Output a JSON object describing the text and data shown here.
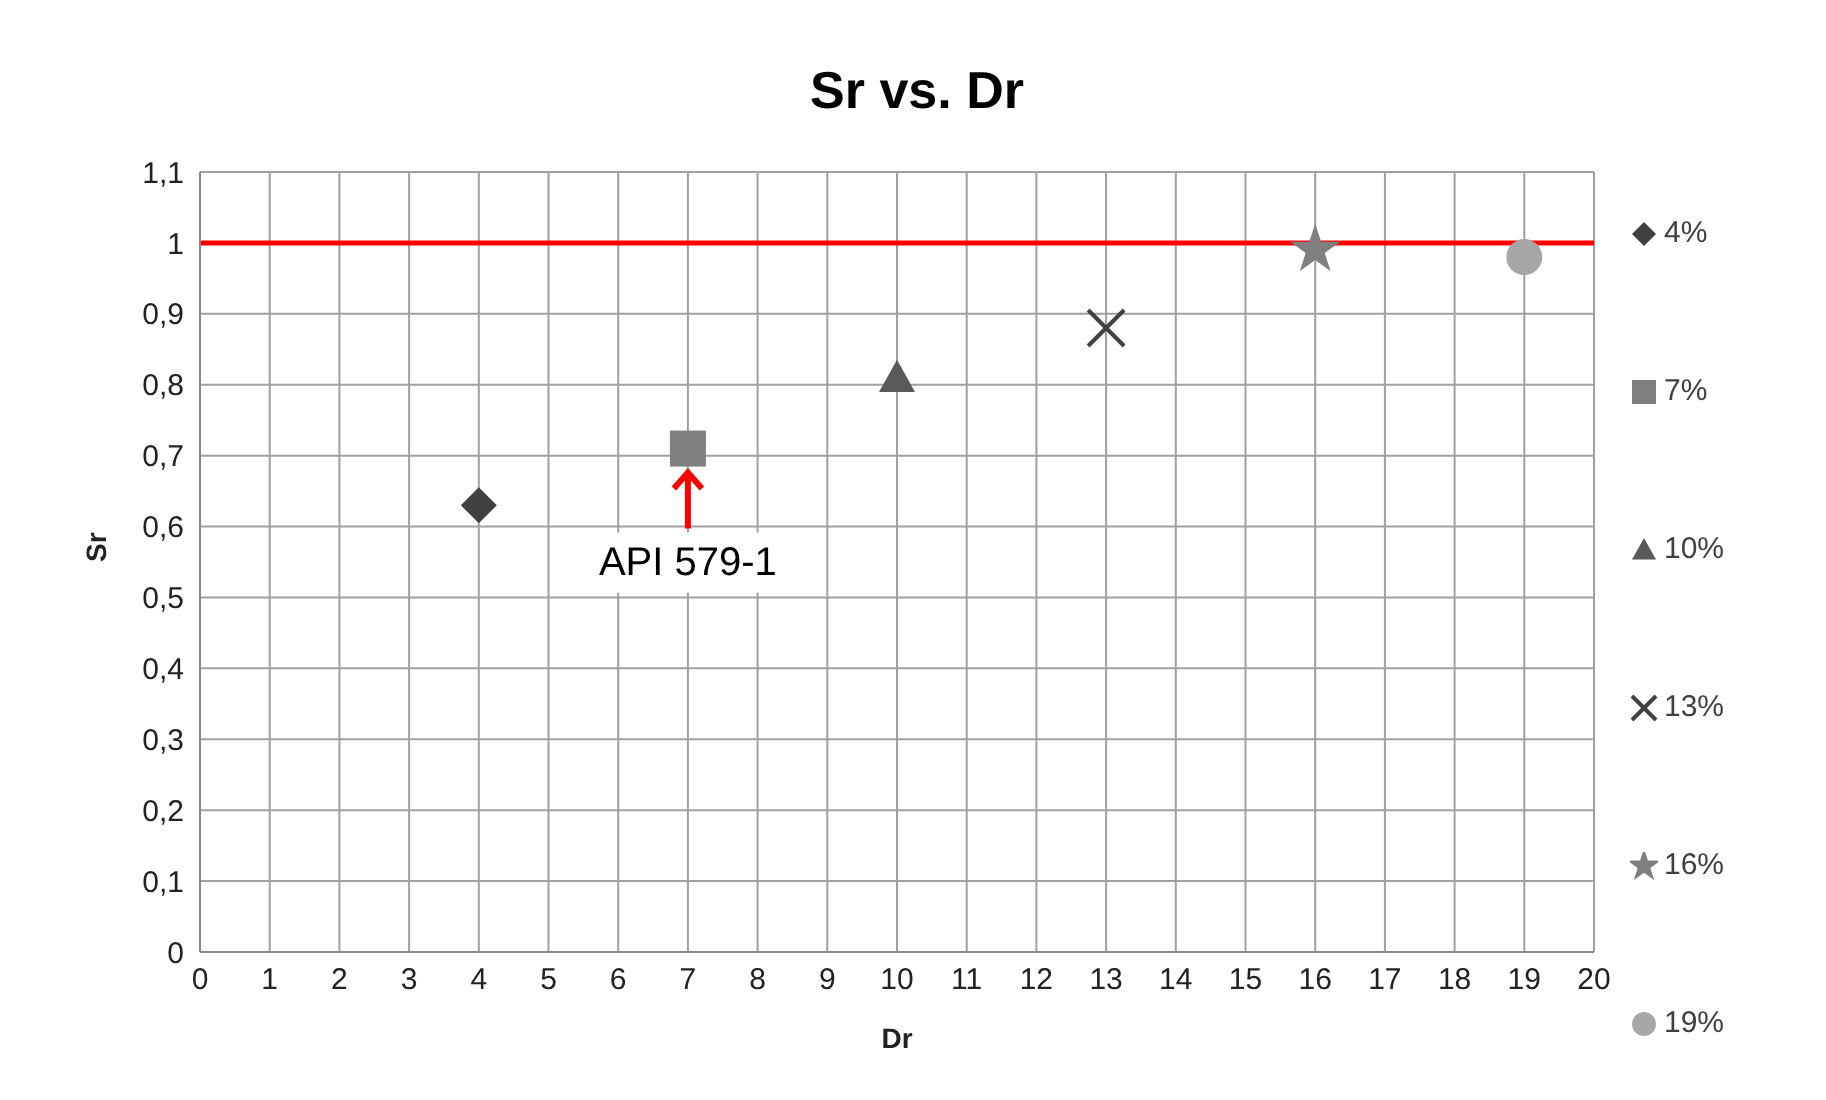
{
  "chart_data": {
    "type": "scatter",
    "title": "Sr vs. Dr",
    "xlabel": "Dr",
    "ylabel": "Sr",
    "series": [
      {
        "name": "4%",
        "color": "#404040",
        "marker": "diamond",
        "x": [
          4
        ],
        "values": [
          0.63
        ]
      },
      {
        "name": "7%",
        "color": "#808080",
        "marker": "square",
        "x": [
          7
        ],
        "values": [
          0.71
        ]
      },
      {
        "name": "10%",
        "color": "#595959",
        "marker": "triangle",
        "x": [
          10
        ],
        "values": [
          0.81
        ]
      },
      {
        "name": "13%",
        "color": "#404040",
        "marker": "cross",
        "x": [
          13
        ],
        "values": [
          0.88
        ]
      },
      {
        "name": "16%",
        "color": "#7f7f7f",
        "marker": "star",
        "x": [
          16
        ],
        "values": [
          0.99
        ]
      },
      {
        "name": "19%",
        "color": "#a6a6a6",
        "marker": "circle",
        "x": [
          19
        ],
        "values": [
          0.98
        ]
      }
    ],
    "xlim": [
      0,
      20
    ],
    "xticks": [
      0,
      1,
      2,
      3,
      4,
      5,
      6,
      7,
      8,
      9,
      10,
      11,
      12,
      13,
      14,
      15,
      16,
      17,
      18,
      19,
      20
    ],
    "ylim": [
      0,
      1.1
    ],
    "yticks": [
      0,
      {
        "value": 0.1,
        "label": "0,1"
      },
      {
        "value": 0.2,
        "label": "0,2"
      },
      {
        "value": 0.3,
        "label": "0,3"
      },
      {
        "value": 0.4,
        "label": "0,4"
      },
      {
        "value": 0.5,
        "label": "0,5"
      },
      {
        "value": 0.6,
        "label": "0,6"
      },
      {
        "value": 0.7,
        "label": "0,7"
      },
      {
        "value": 0.8,
        "label": "0,8"
      },
      {
        "value": 0.9,
        "label": "0,9"
      },
      1,
      {
        "value": 1.1,
        "label": "1,1"
      }
    ],
    "ref_lines": [
      {
        "axis": "y",
        "value": 1,
        "color": "#ff0000"
      }
    ],
    "annotations": [
      {
        "text": "API 579-1",
        "x": 7,
        "y": 0.71
      }
    ],
    "grid": true,
    "legend": "right"
  }
}
